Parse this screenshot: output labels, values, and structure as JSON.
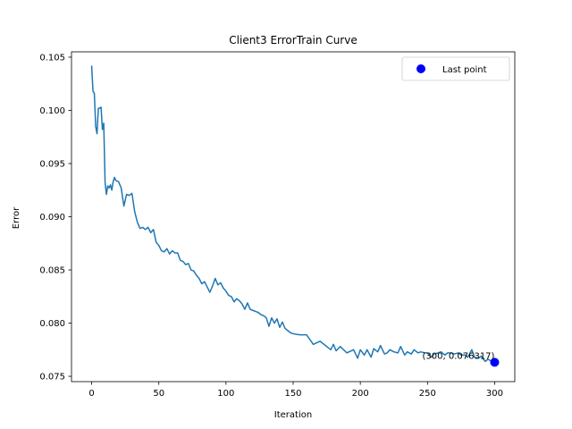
{
  "chart_data": {
    "type": "line",
    "title": "Client3 ErrorTrain Curve",
    "xlabel": "Iteration",
    "ylabel": "Error",
    "xlim": [
      -15,
      315
    ],
    "ylim": [
      0.0745,
      0.1055
    ],
    "xticks": [
      0,
      50,
      100,
      150,
      200,
      250,
      300
    ],
    "yticks": [
      0.075,
      0.08,
      0.085,
      0.09,
      0.095,
      0.1,
      0.105
    ],
    "ytick_labels": [
      "0.075",
      "0.080",
      "0.085",
      "0.090",
      "0.095",
      "0.100",
      "0.105"
    ],
    "grid": false,
    "legend_position": "top-right",
    "series": [
      {
        "color": "#1f77b4",
        "x": [
          0,
          1,
          2,
          3,
          4,
          5,
          6,
          7,
          8,
          9,
          10,
          11,
          12,
          13,
          14,
          15,
          16,
          17,
          18,
          20,
          22,
          24,
          26,
          28,
          30,
          32,
          34,
          36,
          38,
          40,
          42,
          44,
          46,
          48,
          50,
          52,
          54,
          56,
          58,
          60,
          62,
          64,
          66,
          68,
          70,
          72,
          74,
          76,
          78,
          80,
          82,
          84,
          86,
          88,
          90,
          92,
          94,
          96,
          98,
          100,
          102,
          104,
          106,
          108,
          110,
          112,
          114,
          116,
          118,
          120,
          122,
          124,
          126,
          128,
          130,
          132,
          134,
          136,
          138,
          140,
          142,
          144,
          146,
          148,
          150,
          155,
          160,
          165,
          170,
          175,
          178,
          180,
          182,
          185,
          190,
          195,
          198,
          200,
          203,
          205,
          208,
          210,
          213,
          215,
          218,
          220,
          222,
          225,
          228,
          230,
          233,
          235,
          238,
          240,
          243,
          245,
          248,
          250,
          253,
          255,
          258,
          260,
          263,
          265,
          268,
          270,
          273,
          275,
          278,
          280,
          283,
          285,
          288,
          290,
          293,
          295,
          298,
          300
        ],
        "y": [
          0.1042,
          0.1018,
          0.1016,
          0.0985,
          0.0978,
          0.1002,
          0.1002,
          0.1003,
          0.0982,
          0.0988,
          0.0932,
          0.0921,
          0.0929,
          0.0927,
          0.093,
          0.0925,
          0.0933,
          0.0937,
          0.0934,
          0.0933,
          0.0927,
          0.091,
          0.0921,
          0.092,
          0.0922,
          0.0905,
          0.0895,
          0.0889,
          0.089,
          0.0888,
          0.089,
          0.0885,
          0.0888,
          0.0876,
          0.0873,
          0.0868,
          0.0867,
          0.087,
          0.0865,
          0.0868,
          0.0866,
          0.0866,
          0.0859,
          0.0858,
          0.0855,
          0.0856,
          0.085,
          0.0849,
          0.0845,
          0.0842,
          0.0837,
          0.0839,
          0.0834,
          0.0829,
          0.0835,
          0.0842,
          0.0836,
          0.0838,
          0.0833,
          0.083,
          0.0826,
          0.0825,
          0.082,
          0.0823,
          0.0821,
          0.0818,
          0.0813,
          0.0819,
          0.0813,
          0.0812,
          0.0811,
          0.081,
          0.0808,
          0.0807,
          0.0805,
          0.0797,
          0.0805,
          0.08,
          0.0804,
          0.0796,
          0.0801,
          0.0795,
          0.0793,
          0.0791,
          0.079,
          0.0789,
          0.0789,
          0.078,
          0.0783,
          0.0778,
          0.0775,
          0.078,
          0.0774,
          0.0778,
          0.0772,
          0.0775,
          0.0767,
          0.0775,
          0.077,
          0.0775,
          0.0768,
          0.0776,
          0.0773,
          0.0779,
          0.0771,
          0.0772,
          0.0775,
          0.0773,
          0.0772,
          0.0778,
          0.077,
          0.0773,
          0.0771,
          0.0775,
          0.0772,
          0.0773,
          0.0772,
          0.0772,
          0.0768,
          0.0771,
          0.0772,
          0.0773,
          0.077,
          0.0772,
          0.0772,
          0.0771,
          0.0772,
          0.077,
          0.077,
          0.0768,
          0.0775,
          0.0768,
          0.0767,
          0.0769,
          0.0764,
          0.0766,
          0.0764,
          0.076317
        ]
      }
    ],
    "highlight": {
      "x": 300,
      "y": 0.076317,
      "color": "#0000ff",
      "label": "(300, 0.076317)",
      "legend_label": "Last point"
    }
  }
}
